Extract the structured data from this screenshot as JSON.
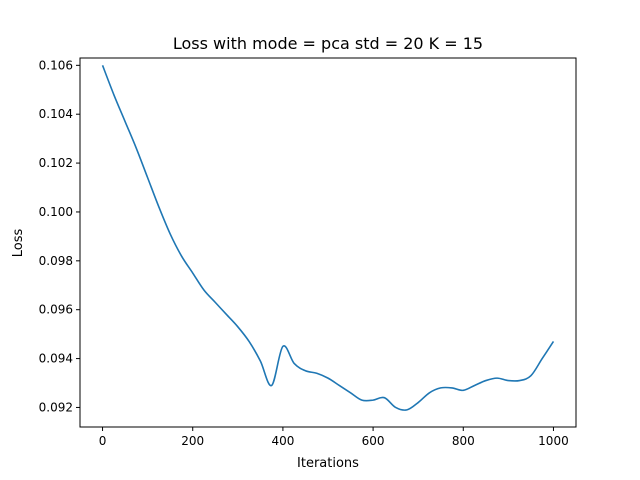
{
  "chart_data": {
    "type": "line",
    "title": "Loss with mode = pca std = 20 K = 15",
    "xlabel": "Iterations",
    "ylabel": "Loss",
    "xlim": [
      -50,
      1050
    ],
    "ylim": [
      0.0912,
      0.1063
    ],
    "xticks": [
      0,
      200,
      400,
      600,
      800,
      1000
    ],
    "yticks": [
      0.092,
      0.094,
      0.096,
      0.098,
      0.1,
      0.102,
      0.104,
      0.106
    ],
    "xtick_labels": [
      "0",
      "200",
      "400",
      "600",
      "800",
      "1000"
    ],
    "ytick_labels": [
      "0.092",
      "0.094",
      "0.096",
      "0.098",
      "0.100",
      "0.102",
      "0.104",
      "0.106"
    ],
    "grid": false,
    "series": [
      {
        "color": "#1f77b4",
        "x": [
          0,
          25,
          50,
          75,
          100,
          125,
          150,
          175,
          200,
          225,
          250,
          275,
          300,
          325,
          350,
          375,
          400,
          425,
          450,
          475,
          500,
          525,
          550,
          575,
          600,
          625,
          650,
          675,
          700,
          725,
          750,
          775,
          800,
          825,
          850,
          875,
          900,
          925,
          950,
          975,
          1000
        ],
        "y": [
          0.106,
          0.1048,
          0.1037,
          0.1026,
          0.1014,
          0.1002,
          0.0991,
          0.0982,
          0.0975,
          0.0968,
          0.0963,
          0.0958,
          0.0953,
          0.0947,
          0.0939,
          0.0929,
          0.0945,
          0.0938,
          0.0935,
          0.0934,
          0.0932,
          0.0929,
          0.0926,
          0.0923,
          0.0923,
          0.0924,
          0.092,
          0.0919,
          0.0922,
          0.0926,
          0.0928,
          0.0928,
          0.0927,
          0.0929,
          0.0931,
          0.0932,
          0.0931,
          0.0931,
          0.0933,
          0.094,
          0.0947
        ]
      }
    ]
  }
}
